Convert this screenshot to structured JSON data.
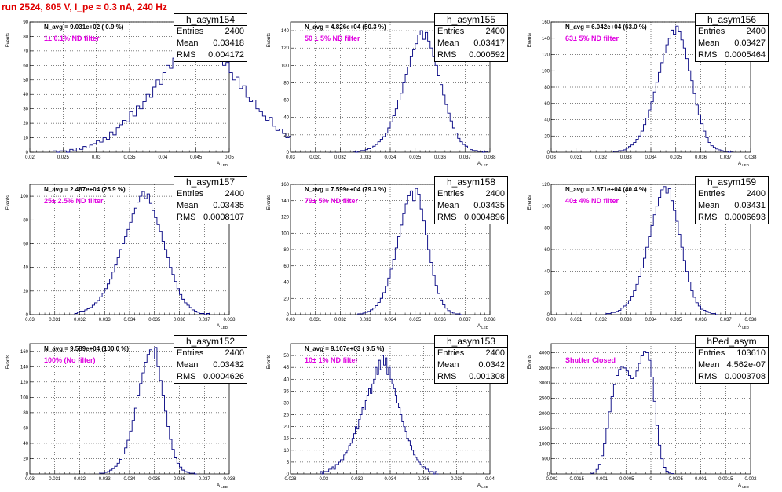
{
  "title": "run 2524,   805 V, I_pe ≈ 0.3 nA, 240 Hz",
  "colors": {
    "title": "#e00000",
    "filter_label": "#e000e0",
    "line": "#000080",
    "grid": "#000000"
  },
  "chart_data": [
    {
      "type": "bar",
      "name": "h_asym154",
      "navg": "N_avg = 9.031e+02 ( 0.9 %)",
      "filter": "1± 0.1% ND filter",
      "xlabel": "A_LED",
      "ylabel": "Events",
      "xlim": [
        0.02,
        0.05
      ],
      "ylim": [
        0,
        90
      ],
      "xticks": [
        "0.02",
        "0.025",
        "0.03",
        "0.035",
        "0.04",
        "0.045",
        "0.05"
      ],
      "yticks": [
        "0",
        "10",
        "20",
        "30",
        "40",
        "50",
        "60",
        "70",
        "80",
        "90"
      ],
      "stats": {
        "entries": "2400",
        "mean": "0.03418",
        "rms": "0.004172"
      },
      "x0": 0.0235,
      "binw": 0.0005,
      "values": [
        1,
        0,
        1,
        1,
        0,
        2,
        1,
        3,
        2,
        4,
        3,
        5,
        6,
        8,
        7,
        10,
        9,
        14,
        12,
        17,
        19,
        22,
        21,
        28,
        25,
        32,
        30,
        35,
        40,
        38,
        45,
        50,
        47,
        55,
        60,
        58,
        65,
        70,
        68,
        75,
        72,
        80,
        78,
        85,
        88,
        82,
        76,
        79,
        70,
        68,
        72,
        60,
        62,
        55,
        50,
        52,
        44,
        46,
        38,
        35,
        36,
        30,
        28,
        25,
        22,
        24,
        18,
        15,
        16,
        13,
        10,
        11,
        8,
        7,
        6,
        5,
        4,
        3,
        3,
        2,
        2,
        1,
        1,
        0,
        1,
        0
      ]
    },
    {
      "type": "bar",
      "name": "h_asym155",
      "navg": "N_avg = 4.826e+04 (50.3 %)",
      "filter": "50 ± 5% ND filter",
      "xlabel": "A_LED",
      "ylabel": "Events",
      "xlim": [
        0.03,
        0.038
      ],
      "ylim": [
        0,
        150
      ],
      "xticks": [
        "0.03",
        "0.031",
        "0.032",
        "0.033",
        "0.034",
        "0.035",
        "0.036",
        "0.037",
        "0.038"
      ],
      "yticks": [
        "0",
        "20",
        "40",
        "60",
        "80",
        "100",
        "120",
        "140"
      ],
      "stats": {
        "entries": "2400",
        "mean": "0.03417",
        "rms": "0.000592"
      },
      "x0": 0.0325,
      "binw": 0.0001,
      "values": [
        1,
        0,
        1,
        2,
        2,
        3,
        4,
        5,
        7,
        9,
        12,
        15,
        18,
        22,
        28,
        35,
        42,
        50,
        60,
        68,
        80,
        90,
        98,
        110,
        118,
        125,
        135,
        140,
        130,
        138,
        128,
        120,
        110,
        100,
        88,
        78,
        66,
        55,
        45,
        36,
        28,
        22,
        16,
        12,
        9,
        7,
        5,
        3,
        2,
        2,
        1,
        1,
        0,
        1
      ]
    },
    {
      "type": "bar",
      "name": "h_asym156",
      "navg": "N_avg = 6.042e+04 (63.0 %)",
      "filter": "63± 5% ND filter",
      "xlabel": "A_LED",
      "ylabel": "Events",
      "xlim": [
        0.03,
        0.038
      ],
      "ylim": [
        0,
        160
      ],
      "xticks": [
        "0.03",
        "0.031",
        "0.032",
        "0.033",
        "0.034",
        "0.035",
        "0.036",
        "0.037",
        "0.038"
      ],
      "yticks": [
        "0",
        "20",
        "40",
        "60",
        "80",
        "100",
        "120",
        "140",
        "160"
      ],
      "stats": {
        "entries": "2400",
        "mean": "0.03427",
        "rms": "0.0005464"
      },
      "x0": 0.0325,
      "binw": 0.0001,
      "values": [
        1,
        1,
        2,
        2,
        3,
        5,
        7,
        9,
        12,
        16,
        20,
        26,
        34,
        42,
        52,
        62,
        74,
        86,
        98,
        110,
        122,
        132,
        140,
        150,
        145,
        155,
        148,
        138,
        128,
        115,
        100,
        88,
        72,
        58,
        46,
        35,
        26,
        18,
        12,
        8,
        6,
        4,
        3,
        2,
        1,
        1,
        0,
        1
      ]
    },
    {
      "type": "bar",
      "name": "h_asym157",
      "navg": "N_avg = 2.487e+04 (25.9 %)",
      "filter": "25± 2.5% ND filter",
      "xlabel": "A_LED",
      "ylabel": "Events",
      "xlim": [
        0.03,
        0.038
      ],
      "ylim": [
        0,
        110
      ],
      "xticks": [
        "0.03",
        "0.031",
        "0.032",
        "0.033",
        "0.034",
        "0.035",
        "0.036",
        "0.037",
        "0.038"
      ],
      "yticks": [
        "0",
        "20",
        "40",
        "60",
        "80",
        "100"
      ],
      "stats": {
        "entries": "2400",
        "mean": "0.03435",
        "rms": "0.0008107"
      },
      "x0": 0.0318,
      "binw": 0.0001,
      "values": [
        1,
        2,
        3,
        3,
        4,
        5,
        6,
        8,
        10,
        12,
        15,
        18,
        22,
        26,
        30,
        36,
        42,
        48,
        55,
        60,
        66,
        72,
        78,
        85,
        90,
        95,
        100,
        104,
        98,
        102,
        94,
        88,
        82,
        76,
        70,
        62,
        55,
        48,
        40,
        34,
        28,
        22,
        17,
        13,
        10,
        8,
        6,
        4,
        3,
        2,
        1,
        1,
        0,
        1
      ]
    },
    {
      "type": "bar",
      "name": "h_asym158",
      "navg": "N_avg = 7.599e+04 (79.3 %)",
      "filter": "79± 5% ND filter",
      "xlabel": "A_LED",
      "ylabel": "Events",
      "xlim": [
        0.03,
        0.038
      ],
      "ylim": [
        0,
        160
      ],
      "xticks": [
        "0.03",
        "0.031",
        "0.032",
        "0.033",
        "0.034",
        "0.035",
        "0.036",
        "0.037",
        "0.038"
      ],
      "yticks": [
        "0",
        "20",
        "40",
        "60",
        "80",
        "100",
        "120",
        "140",
        "160"
      ],
      "stats": {
        "entries": "2400",
        "mean": "0.03435",
        "rms": "0.0004896"
      },
      "x0": 0.0327,
      "binw": 0.0001,
      "values": [
        1,
        1,
        2,
        3,
        4,
        6,
        8,
        11,
        15,
        20,
        27,
        35,
        45,
        56,
        68,
        82,
        96,
        110,
        124,
        136,
        146,
        152,
        140,
        155,
        148,
        130,
        115,
        98,
        80,
        64,
        48,
        36,
        26,
        18,
        12,
        8,
        5,
        3,
        2,
        1,
        1,
        0
      ]
    },
    {
      "type": "bar",
      "name": "h_asym159",
      "navg": "N_avg = 3.871e+04 (40.4 %)",
      "filter": "40± 4% ND filter",
      "xlabel": "A_LED",
      "ylabel": "Events",
      "xlim": [
        0.03,
        0.038
      ],
      "ylim": [
        0,
        120
      ],
      "xticks": [
        "0.03",
        "0.031",
        "0.032",
        "0.033",
        "0.034",
        "0.035",
        "0.036",
        "0.037",
        "0.038"
      ],
      "yticks": [
        "0",
        "20",
        "40",
        "60",
        "80",
        "100",
        "120"
      ],
      "stats": {
        "entries": "2400",
        "mean": "0.03431",
        "rms": "0.0006693"
      },
      "x0": 0.0322,
      "binw": 0.0001,
      "values": [
        1,
        1,
        2,
        2,
        3,
        4,
        6,
        8,
        10,
        13,
        17,
        22,
        28,
        35,
        43,
        52,
        62,
        72,
        82,
        92,
        100,
        108,
        115,
        118,
        112,
        116,
        105,
        96,
        86,
        74,
        62,
        50,
        40,
        30,
        22,
        16,
        11,
        8,
        5,
        4,
        3,
        2,
        1,
        1,
        0
      ]
    },
    {
      "type": "bar",
      "name": "h_asym152",
      "navg": "N_avg = 9.589e+04 (100.0 %)",
      "filter": "100% (No filter)",
      "xlabel": "A_LED",
      "ylabel": "Events",
      "xlim": [
        0.03,
        0.038
      ],
      "ylim": [
        0,
        170
      ],
      "xticks": [
        "0.03",
        "0.031",
        "0.032",
        "0.033",
        "0.034",
        "0.035",
        "0.036",
        "0.037",
        "0.038"
      ],
      "yticks": [
        "0",
        "20",
        "40",
        "60",
        "80",
        "100",
        "120",
        "140",
        "160"
      ],
      "stats": {
        "entries": "2400",
        "mean": "0.03432",
        "rms": "0.0004626"
      },
      "x0": 0.0328,
      "binw": 0.0001,
      "values": [
        1,
        1,
        2,
        3,
        5,
        7,
        10,
        14,
        19,
        26,
        34,
        44,
        56,
        70,
        86,
        102,
        118,
        132,
        146,
        156,
        162,
        150,
        165,
        140,
        122,
        102,
        82,
        62,
        45,
        32,
        21,
        14,
        9,
        5,
        3,
        2,
        1,
        1,
        0
      ]
    },
    {
      "type": "bar",
      "name": "h_asym153",
      "navg": "N_avg = 9.107e+03 ( 9.5 %)",
      "filter": "10± 1% ND filter",
      "xlabel": "A_LED",
      "ylabel": "Events",
      "xlim": [
        0.028,
        0.04
      ],
      "ylim": [
        0,
        55
      ],
      "xticks": [
        "0.028",
        "0.03",
        "0.032",
        "0.034",
        "0.036",
        "0.038",
        "0.04"
      ],
      "yticks": [
        "0",
        "5",
        "10",
        "15",
        "20",
        "25",
        "30",
        "35",
        "40",
        "45",
        "50"
      ],
      "stats": {
        "entries": "2400",
        "mean": "0.0342",
        "rms": "0.001308"
      },
      "x0": 0.0298,
      "binw": 0.0001,
      "values": [
        1,
        0,
        1,
        1,
        1,
        2,
        2,
        3,
        2,
        4,
        4,
        5,
        6,
        6,
        8,
        9,
        10,
        12,
        13,
        15,
        17,
        20,
        19,
        23,
        25,
        28,
        27,
        31,
        33,
        36,
        34,
        38,
        40,
        45,
        42,
        48,
        44,
        50,
        46,
        49,
        42,
        45,
        40,
        38,
        36,
        33,
        30,
        28,
        25,
        22,
        20,
        18,
        15,
        14,
        12,
        10,
        8,
        7,
        6,
        5,
        4,
        3,
        3,
        2,
        2,
        1,
        1,
        1,
        0,
        1,
        0
      ]
    },
    {
      "type": "bar",
      "name": "hPed_asym",
      "navg": "",
      "filter": "Shutter Closed",
      "xlabel": "A_LED",
      "ylabel": "Events",
      "xlim": [
        -0.002,
        0.002
      ],
      "ylim": [
        0,
        4300
      ],
      "xticks": [
        "-0.002",
        "-0.0015",
        "-0.001",
        "-0.0005",
        "0",
        "0.0005",
        "0.001",
        "0.0015",
        "0.002"
      ],
      "yticks": [
        "0",
        "500",
        "1000",
        "1500",
        "2000",
        "2500",
        "3000",
        "3500",
        "4000"
      ],
      "stats": {
        "entries": "103610",
        "mean": "4.562e-07",
        "rms": "0.0003708"
      },
      "x0": -0.0012,
      "binw": 5e-05,
      "values": [
        20,
        60,
        150,
        320,
        600,
        1000,
        1500,
        2050,
        2550,
        2950,
        3250,
        3450,
        3550,
        3500,
        3400,
        3250,
        3150,
        3200,
        3400,
        3650,
        3900,
        4050,
        4000,
        3750,
        3200,
        2400,
        1600,
        950,
        500,
        220,
        90,
        30,
        10
      ]
    }
  ]
}
